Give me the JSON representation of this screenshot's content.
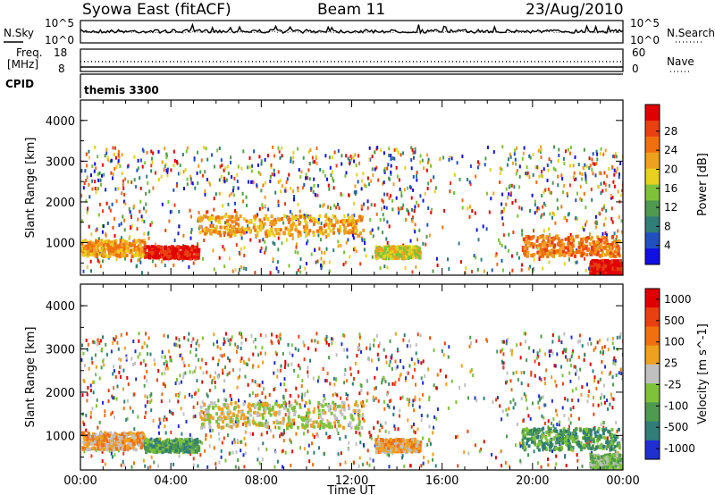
{
  "header": {
    "title_left": "Syowa East (fitACF)",
    "title_center": "Beam 11",
    "title_right": "23/Aug/2010"
  },
  "noise_panel": {
    "left_label": "N.Sky",
    "right_label": "N.Search",
    "left_top": "10^5",
    "left_bottom": "10^0",
    "right_top": "10^5",
    "right_bottom": "10^0"
  },
  "freq_panel": {
    "left_label_1": "Freq.",
    "left_label_2": "[MHz]",
    "left_top": "18",
    "left_bottom": "8",
    "right_label": "Nave",
    "right_top": "60",
    "right_bottom": "0"
  },
  "cpid_panel": {
    "label": "CPID",
    "mode": "themis 3300"
  },
  "chart_data": [
    {
      "type": "heatmap",
      "name": "power",
      "ylabel": "Slant Range [km]",
      "yticks": [
        "1000",
        "2000",
        "3000",
        "4000"
      ],
      "ylim": [
        200,
        4500
      ],
      "xlim": [
        0,
        24
      ],
      "colorbar_label": "Power [dB]",
      "colorbar_ticks": [
        "4",
        "8",
        "12",
        "16",
        "20",
        "24",
        "28"
      ],
      "colors": [
        "#1010e0",
        "#2050c0",
        "#2f7e78",
        "#4e9a4e",
        "#7ec23a",
        "#e8d020",
        "#f0a020",
        "#f07010",
        "#e84010",
        "#e00000"
      ],
      "bands": [
        {
          "x": [
            0.0,
            2.8
          ],
          "y": [
            700,
            1100
          ],
          "level": 6
        },
        {
          "x": [
            2.8,
            5.2
          ],
          "y": [
            650,
            950
          ],
          "level": 9
        },
        {
          "x": [
            5.2,
            12.5
          ],
          "y": [
            1200,
            1700
          ],
          "level": 6
        },
        {
          "x": [
            13.0,
            15.0
          ],
          "y": [
            650,
            950
          ],
          "level": 5
        },
        {
          "x": [
            19.5,
            23.8
          ],
          "y": [
            700,
            1200
          ],
          "level": 7
        },
        {
          "x": [
            22.5,
            24.0
          ],
          "y": [
            200,
            600
          ],
          "level": 9
        }
      ]
    },
    {
      "type": "heatmap",
      "name": "velocity",
      "ylabel": "Slant Range [km]",
      "xlabel": "Time UT",
      "yticks": [
        "1000",
        "2000",
        "3000",
        "4000"
      ],
      "xticks": [
        "00:00",
        "04:00",
        "08:00",
        "12:00",
        "16:00",
        "20:00",
        "00:00"
      ],
      "ylim": [
        200,
        4500
      ],
      "xlim": [
        0,
        24
      ],
      "colorbar_label": "Velocity [m s^-1]",
      "colorbar_ticks": [
        "1000",
        "500",
        "100",
        "25",
        "-25",
        "-100",
        "-500",
        "-1000"
      ],
      "colors": [
        "#2030d0",
        "#2f7e78",
        "#4e9a4e",
        "#7ec23a",
        "#c0c0c0",
        "#f0a020",
        "#f07010",
        "#e84010",
        "#e00000"
      ],
      "bands": [
        {
          "x": [
            0.0,
            2.8
          ],
          "y": [
            700,
            1100
          ],
          "level": 5
        },
        {
          "x": [
            2.8,
            5.2
          ],
          "y": [
            650,
            950
          ],
          "level": 2
        },
        {
          "x": [
            5.2,
            12.5
          ],
          "y": [
            1200,
            1800
          ],
          "level": 4
        },
        {
          "x": [
            13.0,
            15.0
          ],
          "y": [
            650,
            950
          ],
          "level": 5
        },
        {
          "x": [
            19.5,
            23.8
          ],
          "y": [
            700,
            1200
          ],
          "level": 2
        },
        {
          "x": [
            22.5,
            24.0
          ],
          "y": [
            200,
            600
          ],
          "level": 3
        }
      ]
    }
  ]
}
